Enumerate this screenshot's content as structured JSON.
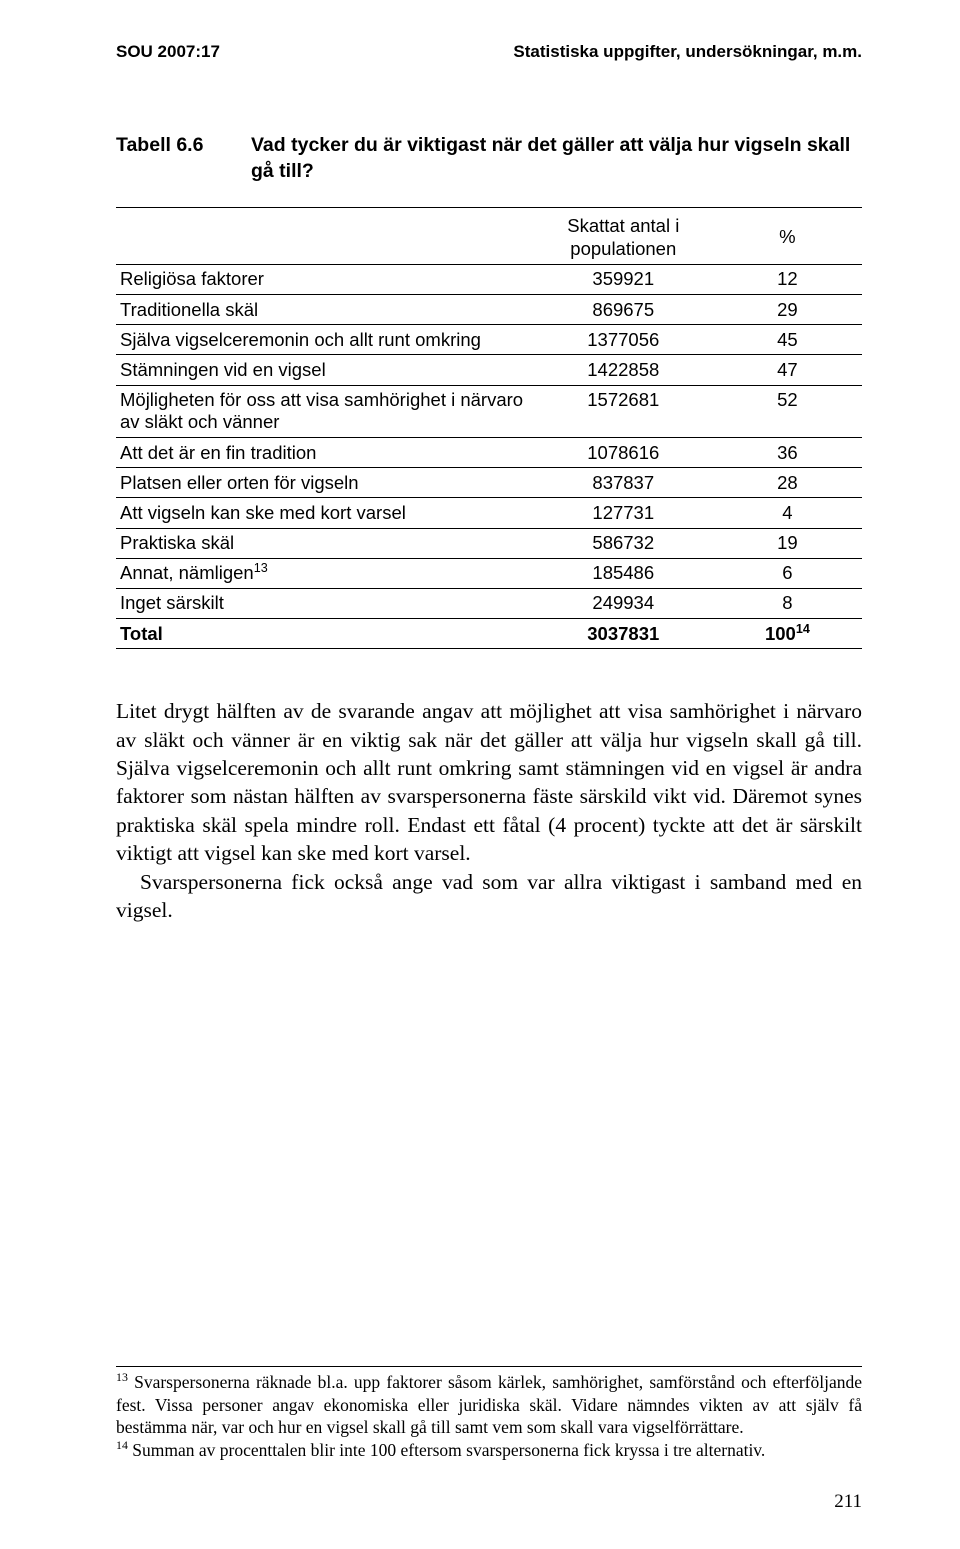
{
  "header": {
    "left": "SOU 2007:17",
    "right": "Statistiska uppgifter, undersökningar, m.m."
  },
  "table": {
    "label": "Tabell 6.6",
    "title": "Vad tycker du är viktigast när det gäller att välja hur vigseln skall gå till?",
    "columns": [
      "",
      "Skattat antal i populationen",
      "%"
    ],
    "rows": [
      {
        "label": "Religiösa faktorer",
        "value": "359921",
        "pct": "12"
      },
      {
        "label": "Traditionella skäl",
        "value": "869675",
        "pct": "29"
      },
      {
        "label": "Själva vigselceremonin och allt runt omkring",
        "value": "1377056",
        "pct": "45"
      },
      {
        "label": "Stämningen vid en vigsel",
        "value": "1422858",
        "pct": "47"
      },
      {
        "label": "Möjligheten för oss att visa samhörighet i närvaro av släkt och vänner",
        "value": "1572681",
        "pct": "52"
      },
      {
        "label": "Att det är en fin tradition",
        "value": "1078616",
        "pct": "36"
      },
      {
        "label": "Platsen eller orten för vigseln",
        "value": "837837",
        "pct": "28"
      },
      {
        "label": "Att vigseln kan ske med kort varsel",
        "value": "127731",
        "pct": "4"
      },
      {
        "label": "Praktiska skäl",
        "value": "586732",
        "pct": "19"
      },
      {
        "label": "Annat, nämligen",
        "label_sup": "13",
        "value": "185486",
        "pct": "6"
      },
      {
        "label": "Inget särskilt",
        "value": "249934",
        "pct": "8"
      }
    ],
    "total": {
      "label": "Total",
      "value": "3037831",
      "pct": "100",
      "pct_sup": "14"
    }
  },
  "paragraphs": {
    "p1": "Litet drygt hälften av de svarande angav att möjlighet att visa sam­hörighet i närvaro av släkt och vänner är en viktig sak när det gäller att välja hur vigseln skall gå till. Själva vigselceremonin och allt runt omkring samt stämningen vid en vigsel är andra faktorer som nästan hälften av svarspersonerna fäste särskild vikt vid. Däremot synes praktiska skäl spela mindre roll. Endast ett fåtal (4 procent) tyckte att det är särskilt viktigt att vigsel kan ske med kort varsel.",
    "p2": "Svarspersonerna fick också ange vad som var allra viktigast i sam­band med en vigsel."
  },
  "footnotes": {
    "f13_sup": "13",
    "f13": " Svarspersonerna räknade bl.a. upp faktorer såsom kärlek, samhörighet, samförstånd och efterföljande fest. Vissa personer angav ekonomiska eller juridiska skäl. Vidare nämndes vikten av att själv få bestämma när, var och hur en vigsel skall gå till samt vem som skall vara vigselförrättare.",
    "f14_sup": "14",
    "f14": " Summan av procenttalen blir inte 100 eftersom svarspersonerna fick kryssa i tre alternativ."
  },
  "page_number": "211"
}
